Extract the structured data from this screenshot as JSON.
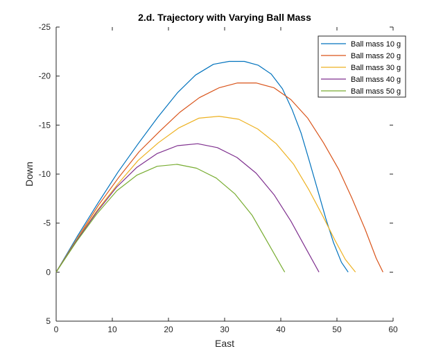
{
  "chart_data": {
    "type": "line",
    "title": "2.d. Trajectory with Varying Ball Mass",
    "xlabel": "East",
    "ylabel": "Down",
    "xlim": [
      0,
      60
    ],
    "ylim": [
      -25,
      5
    ],
    "y_reversed": true,
    "x_ticks": [
      0,
      10,
      20,
      30,
      40,
      50,
      60
    ],
    "y_ticks": [
      -25,
      -20,
      -15,
      -10,
      -5,
      0,
      5
    ],
    "grid": false,
    "legend_position": "top-right",
    "series": [
      {
        "name": "Ball mass 10 g",
        "color": "#0072BD",
        "x": [
          0,
          3.7,
          7.4,
          11.0,
          14.6,
          18.1,
          21.6,
          24.8,
          28.0,
          30.8,
          33.5,
          36.0,
          38.3,
          40.3,
          42.0,
          43.6,
          45.0,
          46.5,
          48.0,
          49.4,
          50.8,
          52.0
        ],
        "y": [
          0,
          -3.6,
          -7.0,
          -10.2,
          -13.1,
          -15.8,
          -18.3,
          -20.1,
          -21.2,
          -21.5,
          -21.5,
          -21.1,
          -20.2,
          -18.7,
          -16.6,
          -14.2,
          -11.5,
          -8.5,
          -5.5,
          -3.0,
          -1.0,
          0
        ]
      },
      {
        "name": "Ball mass 20 g",
        "color": "#D95319",
        "x": [
          0,
          3.8,
          7.5,
          11.2,
          14.8,
          18.5,
          22.0,
          25.5,
          29.0,
          32.3,
          35.6,
          38.8,
          41.8,
          44.8,
          47.6,
          50.3,
          52.7,
          55.0,
          57.0,
          58.2
        ],
        "y": [
          0,
          -3.5,
          -6.8,
          -9.7,
          -12.3,
          -14.4,
          -16.3,
          -17.8,
          -18.8,
          -19.3,
          -19.3,
          -18.8,
          -17.6,
          -15.7,
          -13.2,
          -10.5,
          -7.5,
          -4.4,
          -1.4,
          0
        ]
      },
      {
        "name": "Ball mass 30 g",
        "color": "#EDB120",
        "x": [
          0,
          3.6,
          7.3,
          11.0,
          14.6,
          18.2,
          21.8,
          25.4,
          29.0,
          32.5,
          35.9,
          39.2,
          42.3,
          45.0,
          47.5,
          49.6,
          51.5,
          53.3
        ],
        "y": [
          0,
          -3.3,
          -6.3,
          -9.0,
          -11.4,
          -13.2,
          -14.7,
          -15.7,
          -15.9,
          -15.6,
          -14.6,
          -13.1,
          -11.0,
          -8.4,
          -5.7,
          -3.3,
          -1.3,
          0
        ]
      },
      {
        "name": "Ball mass 40 g",
        "color": "#7E2F8E",
        "x": [
          0,
          3.6,
          7.2,
          10.8,
          14.4,
          18.0,
          21.6,
          25.2,
          28.7,
          32.2,
          35.6,
          38.8,
          41.8,
          44.5,
          46.8
        ],
        "y": [
          0,
          -3.2,
          -6.1,
          -8.7,
          -10.7,
          -12.1,
          -12.9,
          -13.1,
          -12.7,
          -11.7,
          -10.1,
          -7.9,
          -5.2,
          -2.4,
          0
        ]
      },
      {
        "name": "Ball mass 50 g",
        "color": "#77AC30",
        "x": [
          0,
          3.6,
          7.2,
          10.8,
          14.4,
          18.0,
          21.5,
          25.0,
          28.5,
          31.8,
          34.9,
          37.7,
          40.2,
          40.7
        ],
        "y": [
          0,
          -3.1,
          -5.9,
          -8.3,
          -9.9,
          -10.8,
          -11.0,
          -10.6,
          -9.6,
          -8.0,
          -5.8,
          -3.0,
          -0.5,
          0
        ]
      }
    ]
  }
}
